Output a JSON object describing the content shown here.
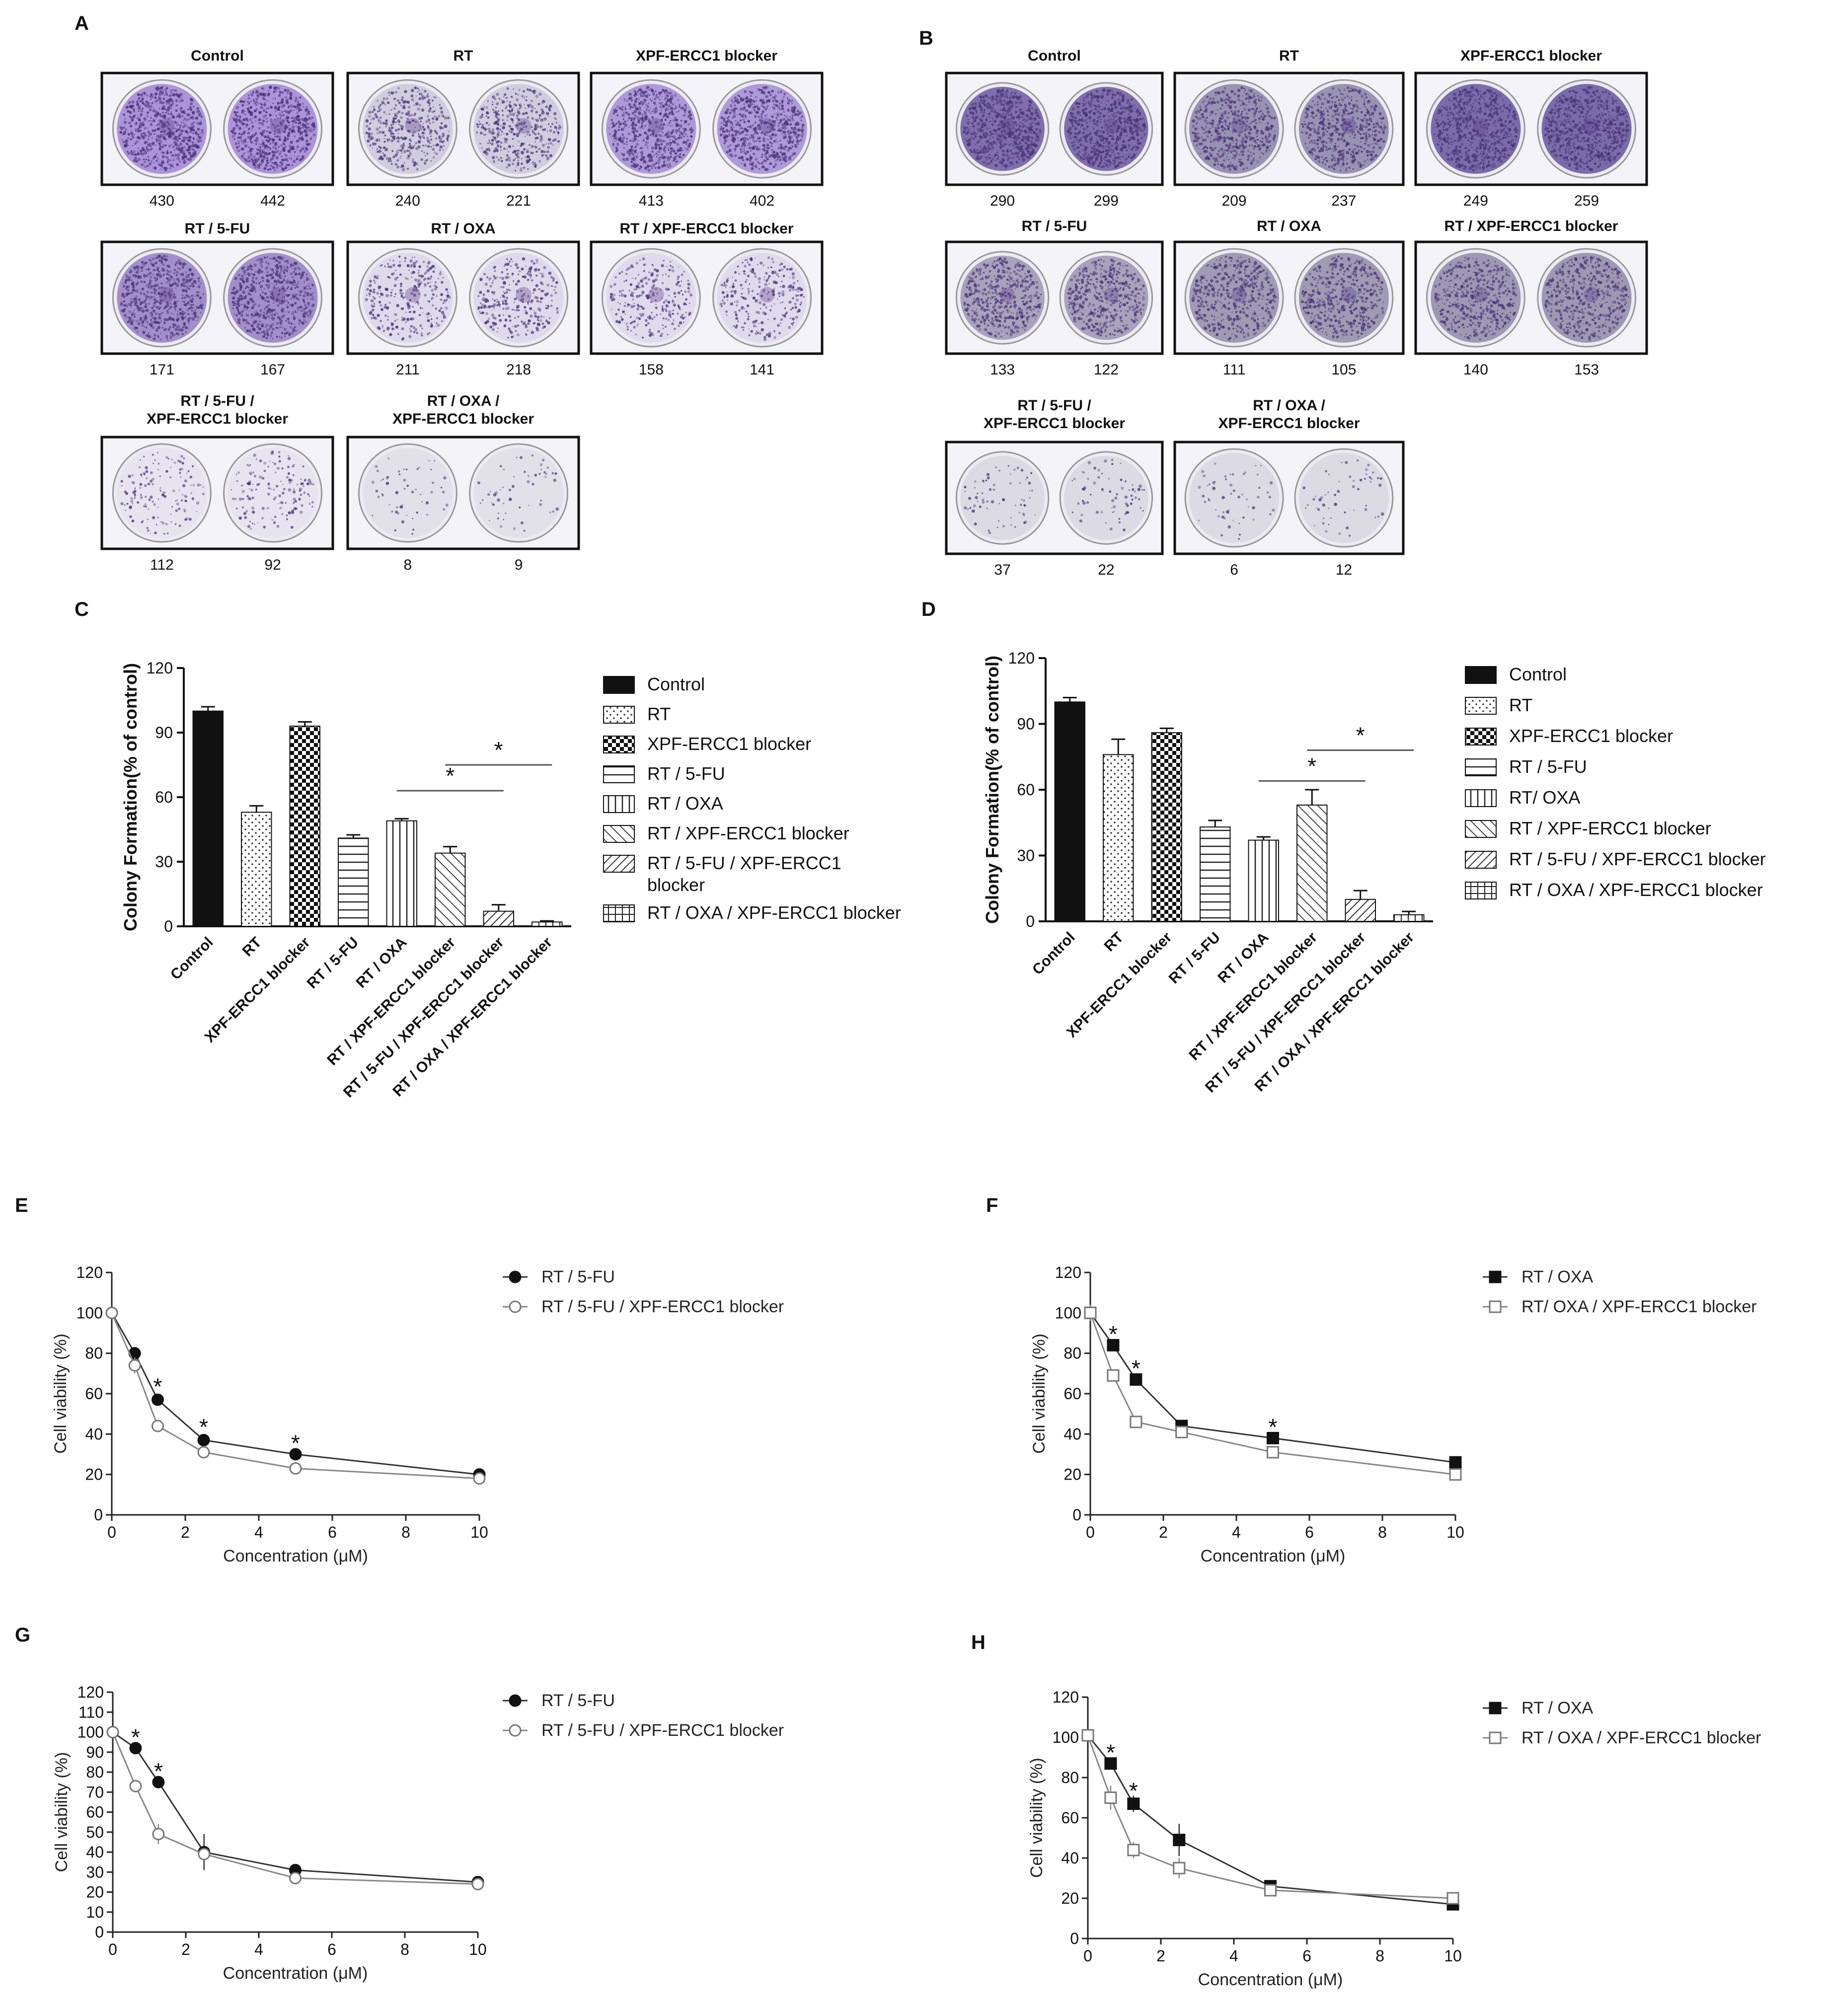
{
  "panel_labels": [
    "A",
    "B",
    "C",
    "D",
    "E",
    "F",
    "G",
    "H"
  ],
  "colors": {
    "control_dish": "#a98fd6",
    "rt_dish": "#b4b2c9",
    "stain_dark": "#5b3f8c",
    "bar_fill": "#111111"
  },
  "colony_A": {
    "wells": [
      {
        "title": "Control",
        "counts": [
          "430",
          "442"
        ],
        "density": 0.9,
        "tone": "#a890d8"
      },
      {
        "title": "RT",
        "counts": [
          "240",
          "221"
        ],
        "density": 0.5,
        "tone": "#c8c4d8"
      },
      {
        "title": "XPF-ERCC1 blocker",
        "counts": [
          "413",
          "402"
        ],
        "density": 0.85,
        "tone": "#a993d6"
      },
      {
        "title": "RT / 5-FU",
        "counts": [
          "171",
          "167"
        ],
        "density": 0.8,
        "tone": "#9a86c6"
      },
      {
        "title": "RT / OXA",
        "counts": [
          "211",
          "218"
        ],
        "density": 0.35,
        "tone": "#d8d3e8"
      },
      {
        "title": "RT / XPF-ERCC1 blocker",
        "counts": [
          "158",
          "141"
        ],
        "density": 0.3,
        "tone": "#d9d4e9"
      },
      {
        "title": "RT / 5-FU /\nXPF-ERCC1 blocker",
        "counts": [
          "112",
          "92"
        ],
        "density": 0.15,
        "tone": "#e4e0ef"
      },
      {
        "title": "RT / OXA /\nXPF-ERCC1 blocker",
        "counts": [
          "8",
          "9"
        ],
        "density": 0.02,
        "tone": "#d9d9e2"
      }
    ]
  },
  "colony_B": {
    "wells": [
      {
        "title": "Control",
        "counts": [
          "290",
          "299"
        ],
        "density": 0.9,
        "tone": "#7a6aa8"
      },
      {
        "title": "RT",
        "counts": [
          "209",
          "237"
        ],
        "density": 0.7,
        "tone": "#8c86a8"
      },
      {
        "title": "XPF-ERCC1 blocker",
        "counts": [
          "249",
          "259"
        ],
        "density": 0.9,
        "tone": "#7466a6"
      },
      {
        "title": "RT / 5-FU",
        "counts": [
          "133",
          "122"
        ],
        "density": 0.6,
        "tone": "#9894ae"
      },
      {
        "title": "RT / OXA",
        "counts": [
          "111",
          "105"
        ],
        "density": 0.6,
        "tone": "#8e8aa4"
      },
      {
        "title": "RT / XPF-ERCC1 blocker",
        "counts": [
          "140",
          "153"
        ],
        "density": 0.6,
        "tone": "#8c88a4"
      },
      {
        "title": "RT / 5-FU /\nXPF-ERCC1 blocker",
        "counts": [
          "37",
          "22"
        ],
        "density": 0.04,
        "tone": "#cfcdd8"
      },
      {
        "title": "RT / OXA /\nXPF-ERCC1 blocker",
        "counts": [
          "6",
          "12"
        ],
        "density": 0.02,
        "tone": "#cfcdd8"
      }
    ]
  },
  "chart_data": [
    {
      "panel": "C",
      "type": "bar",
      "ylabel": "Colony Formation(% of control)",
      "ylim": [
        0,
        120
      ],
      "yticks": [
        "0",
        "30",
        "60",
        "90",
        "120"
      ],
      "categories": [
        "Control",
        "RT",
        "XPF-ERCC1 blocker",
        "RT / 5-FU",
        "RT / OXA",
        "RT / XPF-ERCC1 blocker",
        "RT / 5-FU / XPF-ERCC1 blocker",
        "RT / OXA / XPF-ERCC1 blocker"
      ],
      "values": [
        100,
        53,
        93,
        41,
        49,
        34,
        7,
        2
      ],
      "errors": [
        2,
        3,
        2,
        1.5,
        1,
        3,
        3,
        0.5
      ],
      "patterns": [
        "solid",
        "dots",
        "checker",
        "hlines",
        "vlines",
        "diag",
        "diag2",
        "grid"
      ],
      "legend": [
        "Control",
        "RT",
        "XPF-ERCC1 blocker",
        "RT / 5-FU",
        "RT / OXA",
        "RT / XPF-ERCC1 blocker",
        "RT / 5-FU / XPF-ERCC1\nblocker",
        "RT / OXA / XPF-ERCC1 blocker"
      ],
      "significance": [
        {
          "from": 4,
          "to": 6,
          "y": 63,
          "label": "*"
        },
        {
          "from": 5,
          "to": 7,
          "y": 75,
          "label": "*"
        }
      ]
    },
    {
      "panel": "D",
      "type": "bar",
      "ylabel": "Colony Formation(% of control)",
      "ylim": [
        0,
        120
      ],
      "yticks": [
        "0",
        "30",
        "60",
        "90",
        "120"
      ],
      "categories": [
        "Control",
        "RT",
        "XPF-ERCC1 blocker",
        "RT / 5-FU",
        "RT / OXA",
        "RT / XPF-ERCC1 blocker",
        "RT / 5-FU / XPF-ERCC1 blocker",
        "RT / OXA / XPF-ERCC1 blocker"
      ],
      "values": [
        100,
        76,
        86,
        43,
        37,
        53,
        10,
        3
      ],
      "errors": [
        2,
        7,
        2,
        3,
        1.5,
        7,
        4,
        1.5
      ],
      "patterns": [
        "solid",
        "dots",
        "checker",
        "hlines",
        "vlines",
        "diag",
        "diag2",
        "grid"
      ],
      "legend": [
        "Control",
        "RT",
        "XPF-ERCC1 blocker",
        "RT /  5-FU",
        "RT/ OXA",
        "RT / XPF-ERCC1 blocker",
        "RT / 5-FU / XPF-ERCC1 blocker",
        "RT / OXA / XPF-ERCC1 blocker"
      ],
      "significance": [
        {
          "from": 4,
          "to": 6,
          "y": 64,
          "label": "*"
        },
        {
          "from": 5,
          "to": 7,
          "y": 78,
          "label": "*"
        }
      ]
    },
    {
      "panel": "E",
      "type": "line",
      "xlabel": "Concentration (μM)",
      "ylabel": "Cell viability (%)",
      "xlim": [
        0,
        10
      ],
      "ylim": [
        0,
        120
      ],
      "xticks": [
        "0",
        "2",
        "4",
        "6",
        "8",
        "10"
      ],
      "yticks": [
        "0",
        "20",
        "40",
        "60",
        "80",
        "100",
        "120"
      ],
      "x": [
        0,
        0.625,
        1.25,
        2.5,
        5,
        10
      ],
      "series": [
        {
          "name": "RT / 5-FU",
          "marker": "circle-filled",
          "values": [
            100,
            80,
            57,
            37,
            30,
            20
          ],
          "errors": [
            0,
            2,
            2,
            2,
            1,
            1
          ]
        },
        {
          "name": "RT / 5-FU / XPF-ERCC1 blocker",
          "marker": "circle-open",
          "values": [
            100,
            74,
            44,
            31,
            23,
            18
          ],
          "errors": [
            0,
            4,
            3,
            2,
            1,
            1
          ]
        }
      ],
      "stars": [
        {
          "x": 1.25,
          "y": 64
        },
        {
          "x": 2.5,
          "y": 44
        },
        {
          "x": 5,
          "y": 36
        }
      ]
    },
    {
      "panel": "F",
      "type": "line",
      "xlabel": "Concentration (μM)",
      "ylabel": "Cell viability (%)",
      "xlim": [
        0,
        10
      ],
      "ylim": [
        0,
        120
      ],
      "xticks": [
        "0",
        "2",
        "4",
        "6",
        "8",
        "10"
      ],
      "yticks": [
        "0",
        "20",
        "40",
        "60",
        "80",
        "100",
        "120"
      ],
      "x": [
        0,
        0.625,
        1.25,
        2.5,
        5,
        10
      ],
      "series": [
        {
          "name": "RT / OXA",
          "marker": "square-filled",
          "values": [
            100,
            84,
            67,
            44,
            38,
            26
          ],
          "errors": [
            4,
            2,
            2,
            2,
            2,
            2
          ]
        },
        {
          "name": "RT/ OXA / XPF-ERCC1 blocker",
          "marker": "square-open",
          "values": [
            100,
            69,
            46,
            41,
            31,
            20
          ],
          "errors": [
            4,
            2,
            3,
            2,
            2,
            2
          ]
        }
      ],
      "stars": [
        {
          "x": 0.625,
          "y": 90
        },
        {
          "x": 1.25,
          "y": 73
        },
        {
          "x": 5,
          "y": 44
        }
      ]
    },
    {
      "panel": "G",
      "type": "line",
      "xlabel": "Concentration (μM)",
      "ylabel": "Cell viability (%)",
      "xlim": [
        0,
        10
      ],
      "ylim": [
        0,
        120
      ],
      "xticks": [
        "0",
        "2",
        "4",
        "6",
        "8",
        "10"
      ],
      "yticks": [
        "0",
        "10",
        "20",
        "30",
        "40",
        "50",
        "60",
        "70",
        "80",
        "90",
        "100",
        "110",
        "120"
      ],
      "x": [
        0,
        0.625,
        1.25,
        2.5,
        5,
        10
      ],
      "series": [
        {
          "name": "RT / 5-FU",
          "marker": "circle-filled",
          "values": [
            100,
            92,
            75,
            40,
            31,
            25
          ],
          "errors": [
            0,
            2,
            2,
            9,
            1,
            1
          ]
        },
        {
          "name": "RT / 5-FU / XPF-ERCC1 blocker",
          "marker": "circle-open",
          "values": [
            100,
            73,
            49,
            39,
            27,
            24
          ],
          "errors": [
            0,
            3,
            5,
            3,
            1,
            1
          ]
        }
      ],
      "stars": [
        {
          "x": 0.625,
          "y": 98
        },
        {
          "x": 1.25,
          "y": 81
        }
      ]
    },
    {
      "panel": "H",
      "type": "line",
      "xlabel": "Concentration (μM)",
      "ylabel": "Cell viability (%)",
      "xlim": [
        0,
        10
      ],
      "ylim": [
        0,
        120
      ],
      "xticks": [
        "0",
        "2",
        "4",
        "6",
        "8",
        "10"
      ],
      "yticks": [
        "0",
        "20",
        "40",
        "60",
        "80",
        "100",
        "120"
      ],
      "x": [
        0,
        0.625,
        1.25,
        2.5,
        5,
        10
      ],
      "series": [
        {
          "name": "RT / OXA",
          "marker": "square-filled",
          "values": [
            101,
            87,
            67,
            49,
            26,
            17
          ],
          "errors": [
            3,
            3,
            4,
            8,
            2,
            2
          ]
        },
        {
          "name": "RT / OXA / XPF-ERCC1 blocker",
          "marker": "square-open",
          "values": [
            101,
            70,
            44,
            35,
            24,
            20
          ],
          "errors": [
            3,
            6,
            4,
            5,
            2,
            2
          ]
        }
      ],
      "stars": [
        {
          "x": 0.625,
          "y": 93
        },
        {
          "x": 1.25,
          "y": 74
        }
      ]
    }
  ]
}
